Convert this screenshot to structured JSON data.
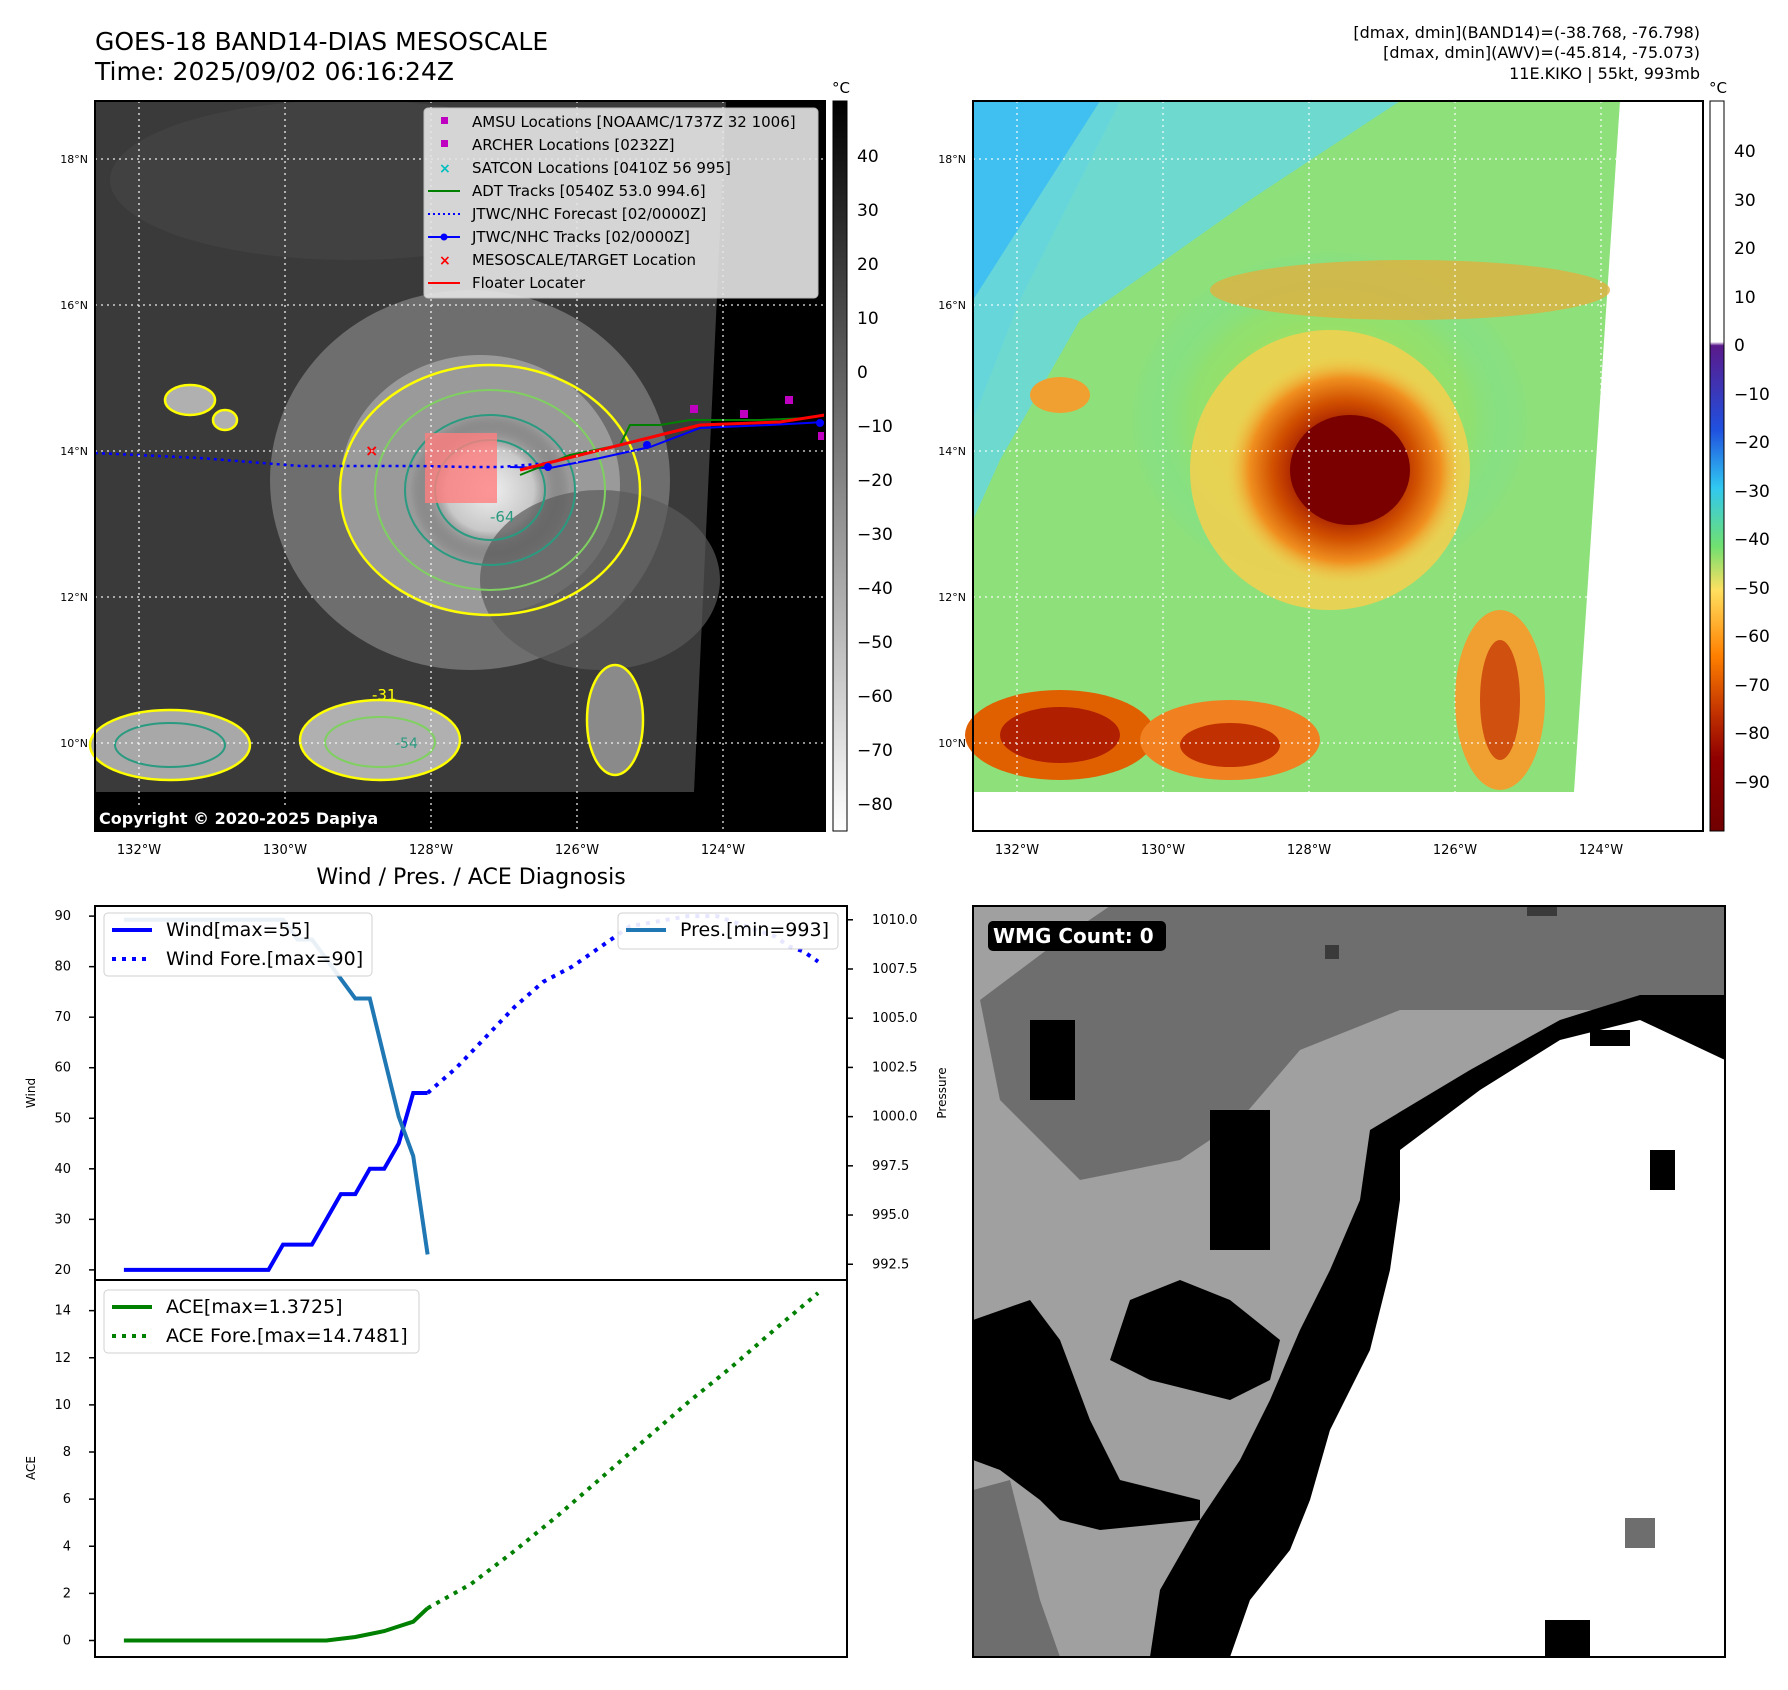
{
  "header": {
    "title_line1": "GOES-18 BAND14-DIAS MESOSCALE",
    "title_line2": "Time: 2025/09/02 06:16:24Z",
    "right_line1": "[dmax, dmin](BAND14)=(-38.768, -76.798)",
    "right_line2": "[dmax, dmin](AWV)=(-45.814, -75.073)",
    "right_line3": "11E.KIKO | 55kt, 993mb"
  },
  "map": {
    "lat_labels": [
      "18°N",
      "16°N",
      "14°N",
      "12°N",
      "10°N"
    ],
    "lon_labels": [
      "132°W",
      "130°W",
      "128°W",
      "126°W",
      "124°W"
    ],
    "copyright": "Copyright © 2020-2025 Dapiya",
    "contour_labels": [
      "-31",
      "-54",
      "-64"
    ],
    "legend": [
      {
        "label": "AMSU Locations [NOAAMC/1737Z 32 1006]",
        "color": "#c000c0",
        "icon": "square-marker"
      },
      {
        "label": "ARCHER Locations [0232Z]",
        "color": "#c000c0",
        "icon": "square-marker"
      },
      {
        "label": "SATCON Locations [0410Z 56 995]",
        "color": "#00bfbf",
        "icon": "x-marker"
      },
      {
        "label": "ADT Tracks [0540Z 53.0 994.6]",
        "color": "#008000",
        "icon": "line"
      },
      {
        "label": "JTWC/NHC Forecast [02/0000Z]",
        "color": "#0000ff",
        "icon": "dotted-line"
      },
      {
        "label": "JTWC/NHC Tracks [02/0000Z]",
        "color": "#0000ff",
        "icon": "line-dot"
      },
      {
        "label": "MESOSCALE/TARGET Location",
        "color": "#ff0000",
        "icon": "x-marker"
      },
      {
        "label": "Floater Locater",
        "color": "#ff0000",
        "icon": "line"
      }
    ]
  },
  "colorbar_gray": {
    "unit": "°C",
    "ticks": [
      "40",
      "30",
      "20",
      "10",
      "0",
      "−10",
      "−20",
      "−30",
      "−40",
      "−50",
      "−60",
      "−70",
      "−80"
    ]
  },
  "colorbar_color": {
    "unit": "°C",
    "ticks": [
      "40",
      "30",
      "20",
      "10",
      "0",
      "−10",
      "−20",
      "−30",
      "−40",
      "−50",
      "−60",
      "−70",
      "−80",
      "−90"
    ]
  },
  "wmg": {
    "label": "WMG Count: 0"
  },
  "chart_data": [
    {
      "type": "line",
      "title": "Wind / Pres. / ACE Diagnosis",
      "ylabel": "Wind",
      "y2label": "Pressure",
      "ylim": [
        18,
        92
      ],
      "y2lim": [
        991.7,
        1010.7
      ],
      "yticks": [
        20,
        30,
        40,
        50,
        60,
        70,
        80,
        90
      ],
      "y2ticks": [
        "992.5",
        "995.0",
        "997.5",
        "1000.0",
        "1002.5",
        "1005.0",
        "1007.5",
        "1010.0"
      ],
      "legend_left": [
        "Wind[max=55]",
        "Wind Fore.[max=90]"
      ],
      "legend_right": [
        "Pres.[min=993]"
      ],
      "series": [
        {
          "name": "Wind[max=55]",
          "color": "#0000ff",
          "style": "solid",
          "x": [
            0,
            1,
            2,
            3,
            4,
            5,
            6,
            7,
            8,
            9,
            10,
            11,
            12,
            13,
            14,
            15,
            16,
            17,
            18,
            19,
            20,
            21
          ],
          "values": [
            20,
            20,
            20,
            20,
            20,
            20,
            20,
            20,
            20,
            20,
            20,
            25,
            25,
            25,
            30,
            35,
            35,
            40,
            40,
            45,
            55,
            55
          ]
        },
        {
          "name": "Wind Fore.[max=90]",
          "color": "#0000ff",
          "style": "dotted",
          "x": [
            21,
            23,
            25,
            27,
            29,
            31,
            33,
            35,
            37,
            39,
            41,
            43,
            45,
            46,
            47,
            48
          ],
          "values": [
            55,
            60,
            66,
            72,
            77,
            80,
            84,
            88,
            89,
            90,
            90,
            88,
            86,
            84,
            83,
            81
          ]
        },
        {
          "name": "Pres.[min=993]",
          "color": "#1f77b4",
          "style": "solid",
          "axis": "right",
          "x": [
            0,
            1,
            2,
            3,
            4,
            5,
            6,
            7,
            8,
            9,
            10,
            11,
            12,
            13,
            14,
            15,
            16,
            17,
            18,
            19,
            20,
            21
          ],
          "values": [
            1010,
            1010,
            1010,
            1010,
            1010,
            1010,
            1010,
            1010,
            1010,
            1010,
            1010,
            1010,
            1009,
            1009,
            1008,
            1007,
            1006,
            1006,
            1003,
            1000,
            998,
            993
          ]
        }
      ]
    },
    {
      "type": "line",
      "ylabel": "ACE",
      "ylim": [
        -0.7,
        15.3
      ],
      "yticks": [
        0,
        2,
        4,
        6,
        8,
        10,
        12,
        14
      ],
      "legend": [
        "ACE[max=1.3725]",
        "ACE Fore.[max=14.7481]"
      ],
      "series": [
        {
          "name": "ACE[max=1.3725]",
          "color": "#008000",
          "style": "solid",
          "x": [
            0,
            5,
            10,
            14,
            16,
            18,
            19,
            20,
            21
          ],
          "values": [
            0,
            0,
            0,
            0,
            0.15,
            0.4,
            0.6,
            0.8,
            1.3725
          ]
        },
        {
          "name": "ACE Fore.[max=14.7481]",
          "color": "#008000",
          "style": "dotted",
          "x": [
            21,
            24,
            27,
            30,
            33,
            36,
            39,
            42,
            45,
            48
          ],
          "values": [
            1.3725,
            2.4,
            3.8,
            5.3,
            6.9,
            8.5,
            10.1,
            11.6,
            13.2,
            14.7481
          ]
        }
      ]
    }
  ]
}
